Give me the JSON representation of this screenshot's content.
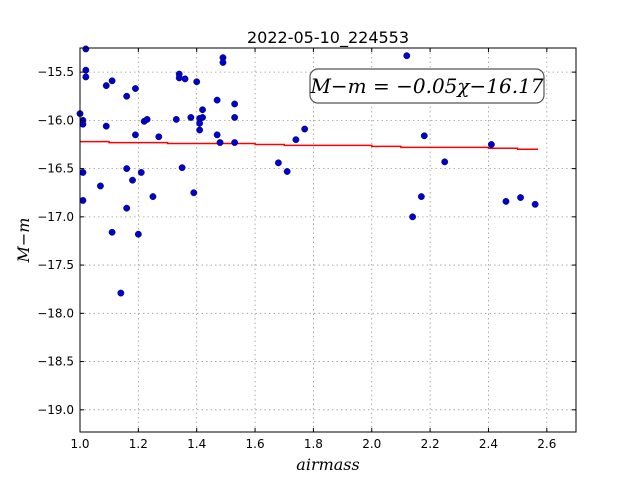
{
  "chart_data": {
    "type": "scatter",
    "title": "2022-05-10_224553",
    "xlabel": "airmass",
    "ylabel": "M−m",
    "xlim": [
      1.0,
      2.7
    ],
    "ylim": [
      -15.25,
      -19.23
    ],
    "y_axis_inverted": true,
    "grid": true,
    "x_ticks": [
      "1.0",
      "1.2",
      "1.4",
      "1.6",
      "1.8",
      "2.0",
      "2.2",
      "2.4",
      "2.6"
    ],
    "x_tick_values": [
      1.0,
      1.2,
      1.4,
      1.6,
      1.8,
      2.0,
      2.2,
      2.4,
      2.6
    ],
    "y_ticks": [
      "−15.5",
      "−16.0",
      "−16.5",
      "−17.0",
      "−17.5",
      "−18.0",
      "−18.5",
      "−19.0"
    ],
    "y_tick_values": [
      -15.5,
      -16.0,
      -16.5,
      -17.0,
      -17.5,
      -18.0,
      -18.5,
      -19.0
    ],
    "annotation": "M−m = −0.05χ−16.17",
    "colors": {
      "points": "#0000cc",
      "fit_line": "#ff0000"
    },
    "fit_line": {
      "slope": -0.05,
      "intercept": -16.17,
      "x_range": [
        1.0,
        2.57
      ]
    },
    "points": [
      {
        "x": 1.0,
        "y": -15.93
      },
      {
        "x": 1.01,
        "y": -16.0
      },
      {
        "x": 1.01,
        "y": -16.04
      },
      {
        "x": 1.01,
        "y": -16.54
      },
      {
        "x": 1.01,
        "y": -16.83
      },
      {
        "x": 1.02,
        "y": -15.26
      },
      {
        "x": 1.02,
        "y": -15.48
      },
      {
        "x": 1.02,
        "y": -15.55
      },
      {
        "x": 1.07,
        "y": -16.68
      },
      {
        "x": 1.09,
        "y": -15.64
      },
      {
        "x": 1.09,
        "y": -16.06
      },
      {
        "x": 1.11,
        "y": -15.59
      },
      {
        "x": 1.11,
        "y": -17.16
      },
      {
        "x": 1.14,
        "y": -17.79
      },
      {
        "x": 1.16,
        "y": -15.75
      },
      {
        "x": 1.16,
        "y": -16.5
      },
      {
        "x": 1.16,
        "y": -16.91
      },
      {
        "x": 1.18,
        "y": -16.62
      },
      {
        "x": 1.19,
        "y": -15.67
      },
      {
        "x": 1.19,
        "y": -16.15
      },
      {
        "x": 1.2,
        "y": -17.18
      },
      {
        "x": 1.21,
        "y": -16.54
      },
      {
        "x": 1.22,
        "y": -16.01
      },
      {
        "x": 1.23,
        "y": -15.99
      },
      {
        "x": 1.25,
        "y": -16.79
      },
      {
        "x": 1.27,
        "y": -16.17
      },
      {
        "x": 1.33,
        "y": -15.99
      },
      {
        "x": 1.34,
        "y": -15.52
      },
      {
        "x": 1.34,
        "y": -15.56
      },
      {
        "x": 1.35,
        "y": -16.49
      },
      {
        "x": 1.36,
        "y": -15.57
      },
      {
        "x": 1.38,
        "y": -15.97
      },
      {
        "x": 1.39,
        "y": -16.75
      },
      {
        "x": 1.4,
        "y": -15.6
      },
      {
        "x": 1.41,
        "y": -15.98
      },
      {
        "x": 1.41,
        "y": -16.03
      },
      {
        "x": 1.41,
        "y": -16.1
      },
      {
        "x": 1.42,
        "y": -15.89
      },
      {
        "x": 1.42,
        "y": -15.97
      },
      {
        "x": 1.47,
        "y": -15.79
      },
      {
        "x": 1.47,
        "y": -16.15
      },
      {
        "x": 1.48,
        "y": -16.23
      },
      {
        "x": 1.49,
        "y": -15.35
      },
      {
        "x": 1.49,
        "y": -15.4
      },
      {
        "x": 1.53,
        "y": -15.83
      },
      {
        "x": 1.53,
        "y": -15.97
      },
      {
        "x": 1.53,
        "y": -16.23
      },
      {
        "x": 1.68,
        "y": -16.44
      },
      {
        "x": 1.71,
        "y": -16.53
      },
      {
        "x": 1.74,
        "y": -16.2
      },
      {
        "x": 1.77,
        "y": -16.09
      },
      {
        "x": 2.12,
        "y": -15.33
      },
      {
        "x": 2.14,
        "y": -17.0
      },
      {
        "x": 2.17,
        "y": -16.79
      },
      {
        "x": 2.18,
        "y": -16.16
      },
      {
        "x": 2.25,
        "y": -16.43
      },
      {
        "x": 2.41,
        "y": -16.25
      },
      {
        "x": 2.46,
        "y": -16.84
      },
      {
        "x": 2.51,
        "y": -16.8
      },
      {
        "x": 2.56,
        "y": -16.87
      }
    ]
  }
}
